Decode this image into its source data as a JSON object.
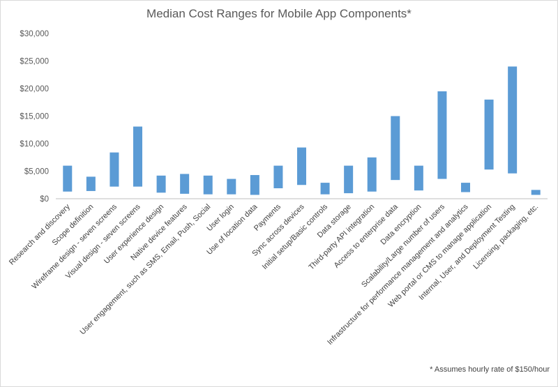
{
  "chart_data": {
    "type": "bar",
    "subtype": "floating-range",
    "title": "Median Cost Ranges for Mobile App Components*",
    "footnote": "* Assumes hourly rate of $150/hour",
    "ylim": [
      0,
      30000
    ],
    "yticks": [
      0,
      5000,
      10000,
      15000,
      20000,
      25000,
      30000
    ],
    "ytick_labels": [
      "$0",
      "$5,000",
      "$10,000",
      "$15,000",
      "$20,000",
      "$25,000",
      "$30,000"
    ],
    "grid": false,
    "bar_color": "#5b9bd5",
    "categories": [
      "Research and discovery",
      "Scope definition",
      "Wireframe design - seven screens",
      "Visual design - seven screens",
      "User experience design",
      "Native device features",
      "User engagement, such as SMS, Email, Push, Social",
      "User login",
      "Use of location data",
      "Payments",
      "Sync across devices",
      "Initial setup/Basic controls",
      "Data storage",
      "Third-party API integration",
      "Access to enterprise data",
      "Data encryption",
      "Scalability/Large number of users",
      "Infrastructure for performance management and analytics",
      "Web portal or CMS to manage application",
      "Internal, User, and Deployment Testing",
      "Licensing, packaging, etc."
    ],
    "low": [
      1300,
      1400,
      2200,
      2200,
      1100,
      900,
      800,
      800,
      700,
      1900,
      2500,
      800,
      1000,
      1300,
      3400,
      1500,
      3600,
      1200,
      5300,
      4600,
      700
    ],
    "high": [
      6000,
      4000,
      8400,
      13100,
      4200,
      4500,
      4200,
      3600,
      4300,
      6000,
      9300,
      2900,
      6000,
      7500,
      15000,
      6000,
      19500,
      2900,
      18000,
      24000,
      1600
    ]
  }
}
